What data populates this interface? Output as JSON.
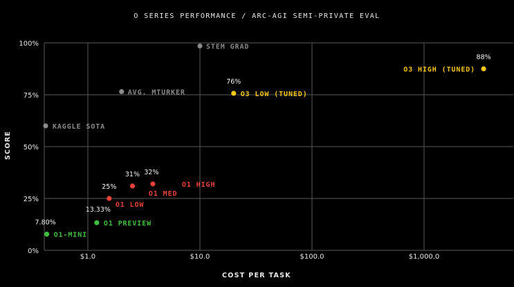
{
  "chart_data": {
    "type": "scatter",
    "title": "O SERIES PERFORMANCE / ARC-AGI SEMI-PRIVATE EVAL",
    "xlabel": "COST PER TASK",
    "ylabel": "SCORE",
    "x_scale": "log",
    "xlim": [
      0.4,
      4500
    ],
    "ylim": [
      0,
      100
    ],
    "x_ticks": [
      1,
      10,
      100,
      1000
    ],
    "x_tick_labels": [
      "$1.0",
      "$10.0",
      "$100.0",
      "$1,000.0"
    ],
    "y_ticks": [
      0,
      25,
      50,
      75,
      100
    ],
    "y_tick_labels": [
      "0%",
      "25%",
      "50%",
      "75%",
      "100%"
    ],
    "grid": true,
    "colors": {
      "green": "#3fbf3f",
      "red": "#e8413a",
      "gray": "#8a8a8a",
      "yellow": "#f5c518",
      "grid": "#5a5a5a",
      "background": "#000000"
    },
    "points": [
      {
        "label": "O1-MINI",
        "value_label": "7.80%",
        "x": 0.43,
        "y": 7.8,
        "color": "green"
      },
      {
        "label": "O1 PREVIEW",
        "value_label": "13.33%",
        "x": 1.2,
        "y": 13.33,
        "color": "green"
      },
      {
        "label": "O1 LOW",
        "value_label": "25%",
        "x": 1.55,
        "y": 25,
        "color": "red"
      },
      {
        "label": "",
        "value_label": "31%",
        "x": 2.5,
        "y": 31,
        "color": "red"
      },
      {
        "label": "O1 MED",
        "value_label": "32%",
        "x": 3.8,
        "y": 32,
        "color": "red"
      },
      {
        "label": "O1 HIGH",
        "value_label": "",
        "x": null,
        "y": null,
        "color": "red"
      },
      {
        "label": "KAGGLE SOTA",
        "value_label": "",
        "x": 0.42,
        "y": 60,
        "color": "gray"
      },
      {
        "label": "AVG. MTURKER",
        "value_label": "",
        "x": 2.0,
        "y": 76.5,
        "color": "gray"
      },
      {
        "label": "STEM GRAD",
        "value_label": "",
        "x": 10,
        "y": 98.5,
        "color": "gray"
      },
      {
        "label": "O3 LOW (TUNED)",
        "value_label": "76%",
        "x": 20,
        "y": 75.7,
        "color": "yellow"
      },
      {
        "label": "O3 HIGH (TUNED)",
        "value_label": "88%",
        "x": 3400,
        "y": 87.5,
        "color": "yellow"
      }
    ]
  }
}
